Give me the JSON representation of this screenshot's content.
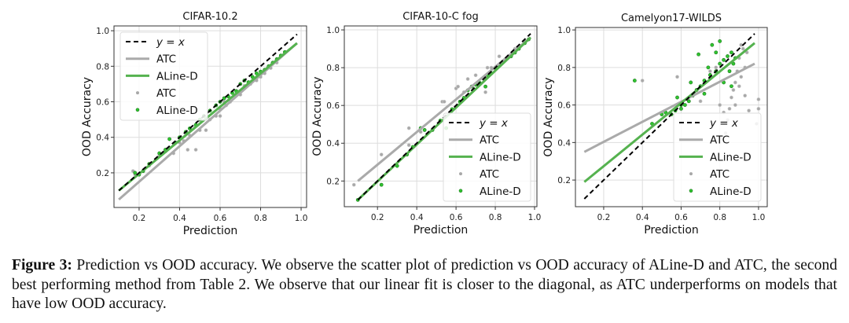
{
  "colors": {
    "identity": "#000000",
    "atc_line": "#aaaaaa",
    "aline_line": "#55b24f",
    "atc_point": "#a8a8a8",
    "aline_point": "#2fc42f",
    "aline_edge": "#1f7a1f",
    "grid": "#dddddd"
  },
  "caption": {
    "label": "Figure 3:",
    "text": " Prediction vs OOD accuracy. We observe the scatter plot of prediction vs OOD accuracy of ALine-D and ATC, the second best performing method from Table 2.  We observe that our linear fit is closer to the diagonal, as ATC underperforms on models that have low OOD accuracy."
  },
  "chart_data": [
    {
      "type": "scatter",
      "title": "CIFAR-10.2",
      "xlabel": "Prediction",
      "ylabel": "OOD Accuracy",
      "xlim": [
        0.076,
        1.027
      ],
      "ylim": [
        0.005,
        1.027
      ],
      "xticks": [
        0.2,
        0.4,
        0.6,
        0.8,
        1.0
      ],
      "yticks": [
        0.2,
        0.4,
        0.6,
        0.8,
        1.0
      ],
      "grid": true,
      "legend_position": "upper-left",
      "legend": [
        "y = x",
        "ATC",
        "ALine-D",
        "ATC",
        "ALine-D"
      ],
      "lines": {
        "identity": [
          [
            0.1,
            0.1
          ],
          [
            0.98,
            0.98
          ]
        ],
        "ATC": [
          [
            0.1,
            0.05
          ],
          [
            0.98,
            0.93
          ]
        ],
        "ALine-D": [
          [
            0.1,
            0.1
          ],
          [
            0.98,
            0.93
          ]
        ]
      },
      "points": {
        "ATC": [
          [
            0.17,
            0.21
          ],
          [
            0.18,
            0.19
          ],
          [
            0.25,
            0.24
          ],
          [
            0.3,
            0.3
          ],
          [
            0.33,
            0.32
          ],
          [
            0.37,
            0.31
          ],
          [
            0.4,
            0.37
          ],
          [
            0.44,
            0.33
          ],
          [
            0.48,
            0.33
          ],
          [
            0.45,
            0.41
          ],
          [
            0.5,
            0.44
          ],
          [
            0.53,
            0.44
          ],
          [
            0.55,
            0.5
          ],
          [
            0.58,
            0.52
          ],
          [
            0.6,
            0.56
          ],
          [
            0.62,
            0.6
          ],
          [
            0.63,
            0.58
          ],
          [
            0.65,
            0.6
          ],
          [
            0.68,
            0.66
          ],
          [
            0.7,
            0.64
          ],
          [
            0.72,
            0.69
          ],
          [
            0.75,
            0.7
          ],
          [
            0.78,
            0.72
          ],
          [
            0.8,
            0.74
          ],
          [
            0.82,
            0.76
          ],
          [
            0.85,
            0.79
          ],
          [
            0.88,
            0.82
          ],
          [
            0.9,
            0.86
          ],
          [
            0.92,
            0.88
          ],
          [
            0.6,
            0.52
          ],
          [
            0.42,
            0.38
          ]
        ],
        "ALine-D": [
          [
            0.18,
            0.2
          ],
          [
            0.2,
            0.19
          ],
          [
            0.22,
            0.21
          ],
          [
            0.25,
            0.25
          ],
          [
            0.3,
            0.31
          ],
          [
            0.35,
            0.39
          ],
          [
            0.33,
            0.33
          ],
          [
            0.38,
            0.37
          ],
          [
            0.4,
            0.4
          ],
          [
            0.43,
            0.43
          ],
          [
            0.45,
            0.45
          ],
          [
            0.48,
            0.47
          ],
          [
            0.5,
            0.5
          ],
          [
            0.52,
            0.52
          ],
          [
            0.55,
            0.55
          ],
          [
            0.58,
            0.58
          ],
          [
            0.6,
            0.6
          ],
          [
            0.62,
            0.62
          ],
          [
            0.64,
            0.63
          ],
          [
            0.66,
            0.65
          ],
          [
            0.68,
            0.66
          ],
          [
            0.7,
            0.7
          ],
          [
            0.72,
            0.72
          ],
          [
            0.74,
            0.71
          ],
          [
            0.76,
            0.74
          ],
          [
            0.78,
            0.76
          ],
          [
            0.8,
            0.77
          ],
          [
            0.82,
            0.78
          ],
          [
            0.84,
            0.8
          ],
          [
            0.86,
            0.82
          ],
          [
            0.88,
            0.84
          ],
          [
            0.9,
            0.86
          ],
          [
            0.92,
            0.88
          ]
        ]
      }
    },
    {
      "type": "scatter",
      "title": "CIFAR-10-C fog",
      "xlabel": "Prediction",
      "ylabel": "OOD Accuracy",
      "xlim": [
        0.031,
        1.012
      ],
      "ylim": [
        0.064,
        1.021
      ],
      "xticks": [
        0.2,
        0.4,
        0.6,
        0.8,
        1.0
      ],
      "yticks": [
        0.2,
        0.4,
        0.6,
        0.8,
        1.0
      ],
      "grid": true,
      "legend_position": "lower-right",
      "legend": [
        "y = x",
        "ATC",
        "ALine-D",
        "ATC",
        "ALine-D"
      ],
      "lines": {
        "identity": [
          [
            0.1,
            0.1
          ],
          [
            0.98,
            0.98
          ]
        ],
        "ATC": [
          [
            0.1,
            0.2
          ],
          [
            0.98,
            0.96
          ]
        ],
        "ALine-D": [
          [
            0.1,
            0.1
          ],
          [
            0.98,
            0.96
          ]
        ]
      },
      "points": {
        "ATC": [
          [
            0.08,
            0.18
          ],
          [
            0.22,
            0.34
          ],
          [
            0.36,
            0.48
          ],
          [
            0.36,
            0.39
          ],
          [
            0.42,
            0.46
          ],
          [
            0.53,
            0.62
          ],
          [
            0.54,
            0.62
          ],
          [
            0.6,
            0.69
          ],
          [
            0.61,
            0.7
          ],
          [
            0.66,
            0.74
          ],
          [
            0.7,
            0.76
          ],
          [
            0.75,
            0.67
          ],
          [
            0.76,
            0.8
          ],
          [
            0.78,
            0.8
          ],
          [
            0.82,
            0.86
          ],
          [
            0.85,
            0.84
          ],
          [
            0.9,
            0.9
          ],
          [
            0.95,
            0.94
          ],
          [
            0.72,
            0.72
          ],
          [
            0.64,
            0.67
          ]
        ],
        "ALine-D": [
          [
            0.1,
            0.1
          ],
          [
            0.22,
            0.18
          ],
          [
            0.3,
            0.28
          ],
          [
            0.35,
            0.34
          ],
          [
            0.38,
            0.38
          ],
          [
            0.42,
            0.48
          ],
          [
            0.44,
            0.47
          ],
          [
            0.48,
            0.47
          ],
          [
            0.55,
            0.48
          ],
          [
            0.52,
            0.52
          ],
          [
            0.58,
            0.58
          ],
          [
            0.62,
            0.62
          ],
          [
            0.64,
            0.64
          ],
          [
            0.66,
            0.68
          ],
          [
            0.68,
            0.7
          ],
          [
            0.7,
            0.71
          ],
          [
            0.72,
            0.72
          ],
          [
            0.75,
            0.7
          ],
          [
            0.76,
            0.76
          ],
          [
            0.78,
            0.77
          ],
          [
            0.8,
            0.8
          ],
          [
            0.82,
            0.81
          ],
          [
            0.85,
            0.84
          ],
          [
            0.88,
            0.86
          ],
          [
            0.9,
            0.88
          ],
          [
            0.92,
            0.9
          ],
          [
            0.95,
            0.93
          ],
          [
            0.97,
            0.95
          ]
        ]
      }
    },
    {
      "type": "scatter",
      "title": "Camelyon17-WILDS",
      "xlabel": "Prediction",
      "ylabel": "OOD Accuracy",
      "xlim": [
        0.054,
        1.045
      ],
      "ylim": [
        0.058,
        1.013
      ],
      "xticks": [
        0.2,
        0.4,
        0.6,
        0.8,
        1.0
      ],
      "yticks": [
        0.2,
        0.4,
        0.6,
        0.8,
        1.0
      ],
      "grid": true,
      "legend_position": "lower-right",
      "legend": [
        "y = x",
        "ATC",
        "ALine-D",
        "ATC",
        "ALine-D"
      ],
      "lines": {
        "identity": [
          [
            0.1,
            0.1
          ],
          [
            0.98,
            0.98
          ]
        ],
        "ATC": [
          [
            0.1,
            0.35
          ],
          [
            0.98,
            0.82
          ]
        ],
        "ALine-D": [
          [
            0.1,
            0.19
          ],
          [
            0.98,
            0.93
          ]
        ]
      },
      "points": {
        "ATC": [
          [
            0.4,
            0.73
          ],
          [
            0.58,
            0.75
          ],
          [
            0.7,
            0.62
          ],
          [
            0.78,
            0.8
          ],
          [
            0.8,
            0.6
          ],
          [
            0.82,
            0.56
          ],
          [
            0.84,
            0.52
          ],
          [
            0.85,
            0.58
          ],
          [
            0.86,
            0.64
          ],
          [
            0.87,
            0.68
          ],
          [
            0.88,
            0.72
          ],
          [
            0.88,
            0.6
          ],
          [
            0.9,
            0.85
          ],
          [
            0.9,
            0.7
          ],
          [
            0.91,
            0.75
          ],
          [
            0.92,
            0.9
          ],
          [
            0.93,
            0.8
          ],
          [
            0.93,
            0.65
          ],
          [
            0.95,
            0.57
          ],
          [
            0.94,
            0.88
          ],
          [
            1.0,
            0.63
          ],
          [
            1.0,
            0.58
          ],
          [
            0.99,
            0.5
          ],
          [
            0.75,
            0.78
          ],
          [
            0.83,
            0.45
          ],
          [
            0.89,
            0.78
          ],
          [
            0.91,
            0.92
          ]
        ],
        "ALine-D": [
          [
            0.36,
            0.73
          ],
          [
            0.45,
            0.5
          ],
          [
            0.5,
            0.55
          ],
          [
            0.52,
            0.56
          ],
          [
            0.55,
            0.55
          ],
          [
            0.57,
            0.57
          ],
          [
            0.58,
            0.64
          ],
          [
            0.6,
            0.6
          ],
          [
            0.62,
            0.6
          ],
          [
            0.65,
            0.72
          ],
          [
            0.66,
            0.65
          ],
          [
            0.68,
            0.68
          ],
          [
            0.69,
            0.87
          ],
          [
            0.7,
            0.7
          ],
          [
            0.72,
            0.73
          ],
          [
            0.74,
            0.8
          ],
          [
            0.75,
            0.76
          ],
          [
            0.76,
            0.92
          ],
          [
            0.78,
            0.78
          ],
          [
            0.78,
            0.88
          ],
          [
            0.8,
            0.82
          ],
          [
            0.8,
            0.94
          ],
          [
            0.82,
            0.84
          ],
          [
            0.82,
            0.72
          ],
          [
            0.84,
            0.86
          ],
          [
            0.85,
            0.78
          ],
          [
            0.86,
            0.88
          ],
          [
            0.87,
            0.82
          ],
          [
            0.88,
            0.85
          ],
          [
            0.86,
            0.7
          ],
          [
            0.72,
            0.66
          ],
          [
            0.6,
            0.58
          ],
          [
            0.64,
            0.62
          ]
        ]
      }
    }
  ]
}
